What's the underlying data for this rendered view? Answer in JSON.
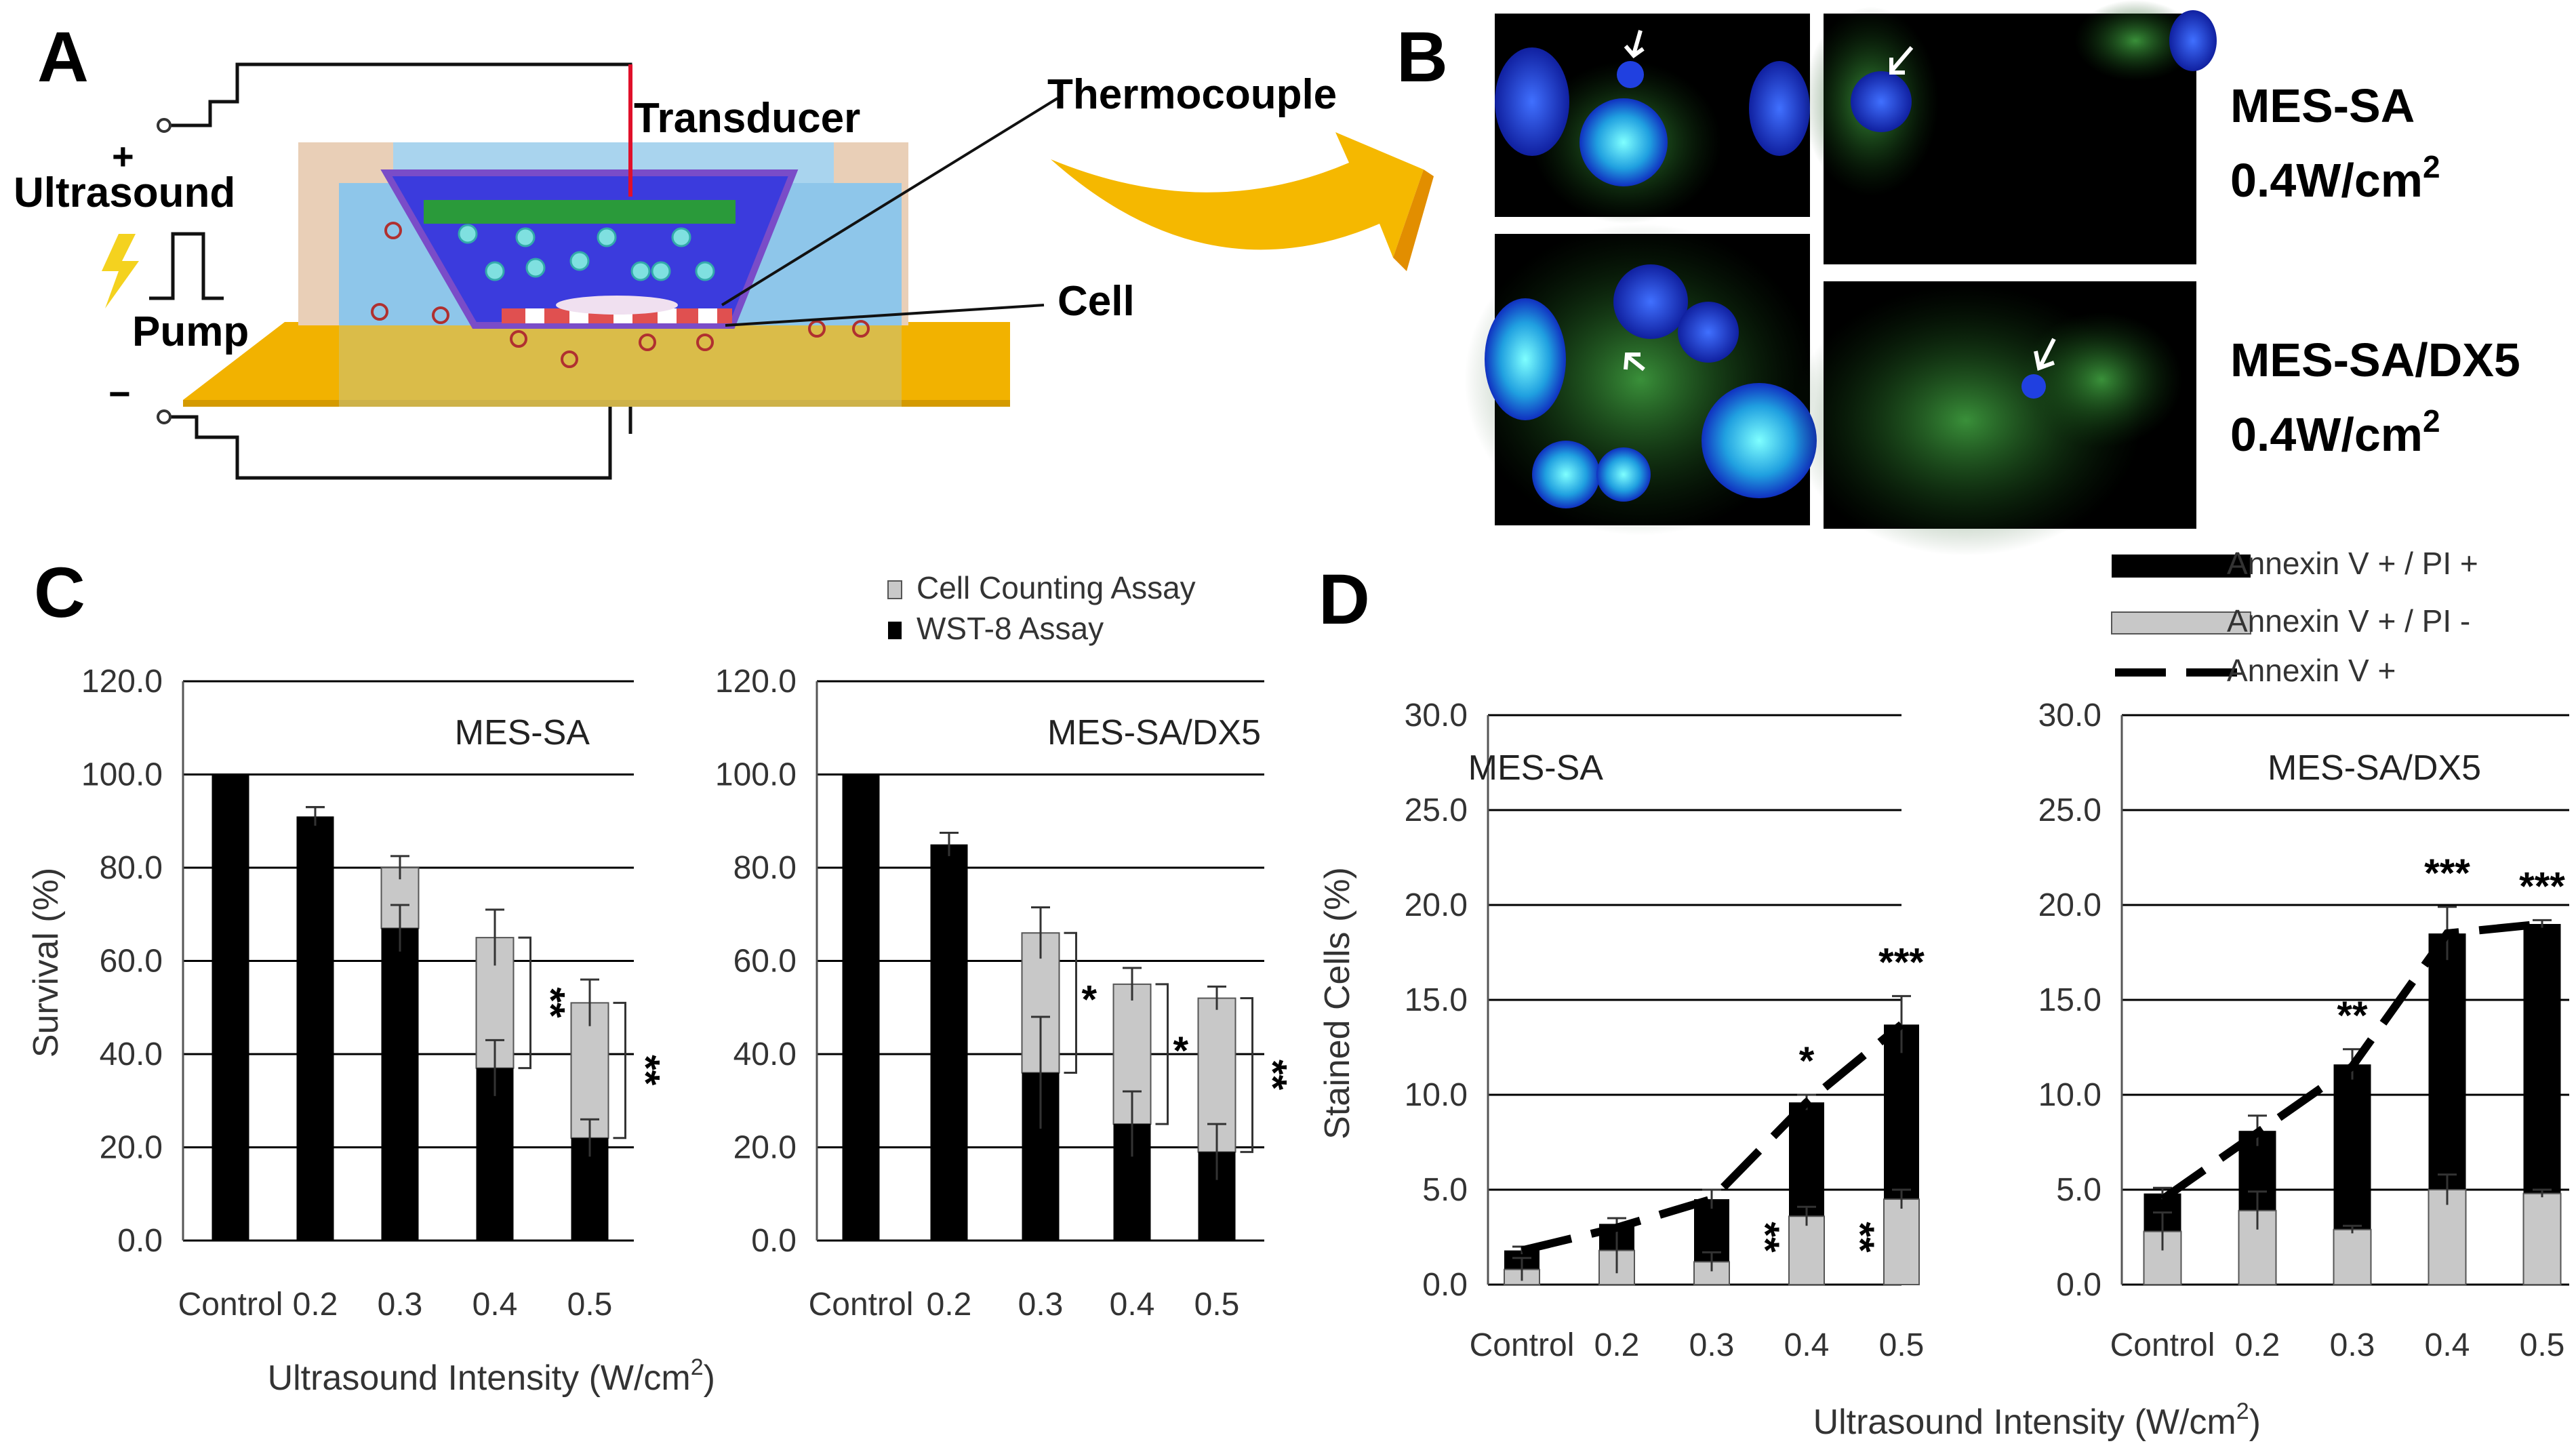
{
  "panels": {
    "A": {
      "letter": "A",
      "labels": {
        "transducer": "Transducer",
        "thermocouple": "Thermocouple",
        "ultrasound": "Ultrasound",
        "pump": "Pump",
        "cell": "Cell",
        "plus": "+",
        "minus": "−"
      }
    },
    "B": {
      "letter": "B",
      "rows": [
        {
          "line1": "MES-SA",
          "line2": "0.4W/cm",
          "sup": "2"
        },
        {
          "line1": "MES-SA/DX5",
          "line2": "0.4W/cm",
          "sup": "2"
        }
      ]
    },
    "C": {
      "letter": "C",
      "legend": [
        "Cell Counting Assay",
        "WST-8 Assay"
      ],
      "ylabel": "Survival (%)",
      "xlabel": "Ultrasound Intensity (W/cm",
      "xlabel_sup": "2",
      "xlabel_end": ")"
    },
    "D": {
      "letter": "D",
      "legend": [
        "Annexin V + / PI +",
        "Annexin V + / PI -",
        "Annexin V +"
      ],
      "ylabel": "Stained Cells (%)",
      "xlabel": "Ultrasound Intensity (W/cm",
      "xlabel_sup": "2",
      "xlabel_end": ")"
    }
  },
  "colors": {
    "black_bar": "#000000",
    "gray_bar": "#c8c8c8",
    "arrow": "#f5b800",
    "plate": "#f2b200",
    "dish": "#3b3bdd"
  },
  "chart_data": [
    {
      "type": "bar",
      "panel": "C",
      "title": "MES-SA",
      "categories": [
        "Control",
        "0.2",
        "0.3",
        "0.4",
        "0.5"
      ],
      "series": [
        {
          "name": "Cell Counting Assay",
          "values": [
            100,
            91,
            80,
            65,
            51
          ],
          "errors": [
            0,
            2,
            2.5,
            6,
            5
          ]
        },
        {
          "name": "WST-8 Assay",
          "values": [
            100,
            91,
            67,
            37,
            22
          ],
          "errors": [
            0,
            2,
            5,
            6,
            4
          ]
        }
      ],
      "yticks": [
        "0.0",
        "20.0",
        "40.0",
        "60.0",
        "80.0",
        "100.0",
        "120.0"
      ],
      "ylim": [
        0,
        120
      ],
      "grid": true,
      "significance": [
        {
          "category": "0.4",
          "marker": "**"
        },
        {
          "category": "0.5",
          "marker": "**"
        }
      ]
    },
    {
      "type": "bar",
      "panel": "C",
      "title": "MES-SA/DX5",
      "categories": [
        "Control",
        "0.2",
        "0.3",
        "0.4",
        "0.5"
      ],
      "series": [
        {
          "name": "Cell Counting Assay",
          "values": [
            100,
            85,
            66,
            55,
            52
          ],
          "errors": [
            0,
            2.5,
            5.5,
            3.5,
            2.5
          ]
        },
        {
          "name": "WST-8 Assay",
          "values": [
            100,
            85,
            36,
            25,
            19
          ],
          "errors": [
            0,
            2.5,
            12,
            7,
            6
          ]
        }
      ],
      "yticks": [
        "0.0",
        "20.0",
        "40.0",
        "60.0",
        "80.0",
        "100.0",
        "120.0"
      ],
      "ylim": [
        0,
        120
      ],
      "grid": true,
      "significance": [
        {
          "category": "0.3",
          "marker": "*"
        },
        {
          "category": "0.4",
          "marker": "*"
        },
        {
          "category": "0.5",
          "marker": "**"
        }
      ]
    },
    {
      "type": "bar",
      "panel": "D",
      "title": "MES-SA",
      "categories": [
        "Control",
        "0.2",
        "0.3",
        "0.4",
        "0.5"
      ],
      "series": [
        {
          "name": "Annexin V + / PI +",
          "values": [
            1.8,
            3.2,
            4.5,
            9.6,
            13.7
          ],
          "errors": [
            0.2,
            0.3,
            0.5,
            0.4,
            1.5
          ]
        },
        {
          "name": "Annexin V + / PI -",
          "values": [
            0.8,
            1.8,
            1.2,
            3.6,
            4.5
          ],
          "errors": [
            0.6,
            1.2,
            0.5,
            0.5,
            0.5
          ]
        },
        {
          "name": "Annexin V +",
          "values": [
            1.8,
            3.0,
            4.5,
            9.6,
            13.7
          ]
        }
      ],
      "yticks": [
        "0.0",
        "5.0",
        "10.0",
        "15.0",
        "20.0",
        "25.0",
        "30.0"
      ],
      "ylim": [
        0,
        30
      ],
      "grid": true,
      "significance": [
        {
          "category": "0.4",
          "marker": "*"
        },
        {
          "category": "0.4",
          "marker": "**"
        },
        {
          "category": "0.5",
          "marker": "***"
        },
        {
          "category": "0.5",
          "marker": "**"
        }
      ]
    },
    {
      "type": "bar",
      "panel": "D",
      "title": "MES-SA/DX5",
      "categories": [
        "Control",
        "0.2",
        "0.3",
        "0.4",
        "0.5"
      ],
      "series": [
        {
          "name": "Annexin V + / PI +",
          "values": [
            4.8,
            8.1,
            11.6,
            18.5,
            19.0
          ],
          "errors": [
            0.3,
            0.8,
            0.8,
            1.4,
            0.2
          ]
        },
        {
          "name": "Annexin V + / PI -",
          "values": [
            2.8,
            3.9,
            2.9,
            5.0,
            4.8
          ],
          "errors": [
            1.0,
            1.0,
            0.2,
            0.8,
            0.2
          ]
        },
        {
          "name": "Annexin V +",
          "values": [
            4.5,
            8.0,
            11.5,
            18.5,
            19.0
          ]
        }
      ],
      "yticks": [
        "0.0",
        "5.0",
        "10.0",
        "15.0",
        "20.0",
        "25.0",
        "30.0"
      ],
      "ylim": [
        0,
        30
      ],
      "grid": true,
      "significance": [
        {
          "category": "0.3",
          "marker": "**"
        },
        {
          "category": "0.4",
          "marker": "***"
        },
        {
          "category": "0.5",
          "marker": "***"
        }
      ]
    }
  ]
}
